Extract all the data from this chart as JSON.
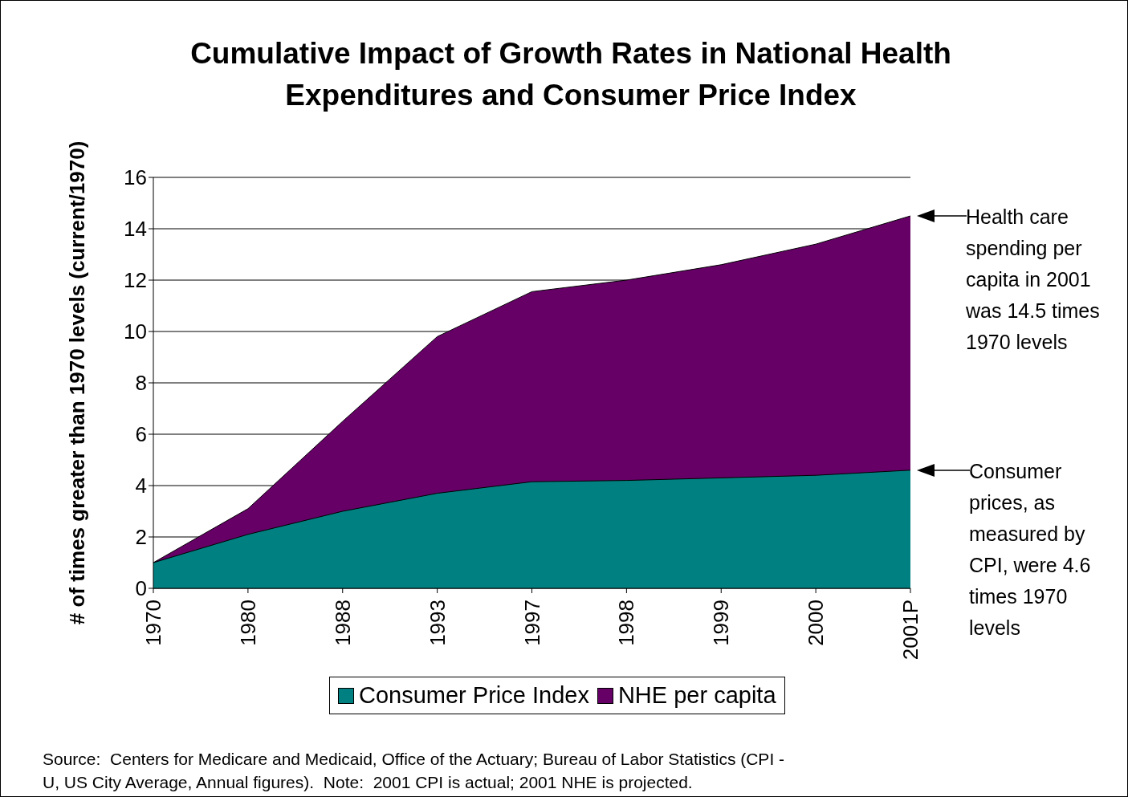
{
  "chart_data": {
    "type": "area",
    "title": "Cumulative Impact of Growth Rates in National Health Expenditures and Consumer Price Index",
    "ylabel": "# of times greater than 1970 levels (current/1970)",
    "categories": [
      "1970",
      "1980",
      "1988",
      "1993",
      "1997",
      "1998",
      "1999",
      "2000",
      "2001P"
    ],
    "series": [
      {
        "name": "Consumer Price Index",
        "color": "#008080",
        "values": [
          1,
          2.1,
          3.0,
          3.7,
          4.15,
          4.2,
          4.3,
          4.4,
          4.6
        ]
      },
      {
        "name": "NHE per capita",
        "color": "#660066",
        "values": [
          1,
          3.1,
          6.5,
          9.8,
          11.55,
          12.0,
          12.6,
          13.4,
          14.5
        ]
      }
    ],
    "ylim": [
      0,
      16
    ],
    "yticks": [
      0,
      2,
      4,
      6,
      8,
      10,
      12,
      14,
      16
    ],
    "grid": "y",
    "legend": "bottom",
    "annotations": [
      {
        "text": "Health care spending per capita in 2001 was  14.5 times 1970 levels",
        "x": "2001P",
        "y": 14.5
      },
      {
        "text": "Consumer prices, as measured by CPI, were 4.6 times 1970 levels",
        "x": "2001P",
        "y": 4.6
      },
      "Source:  Centers for Medicare and Medicaid, Office of the Actuary; Bureau of Labor Statistics (CPI - U, US City Average, Annual figures).  Note:  2001 CPI is actual; 2001 NHE is projected."
    ]
  }
}
